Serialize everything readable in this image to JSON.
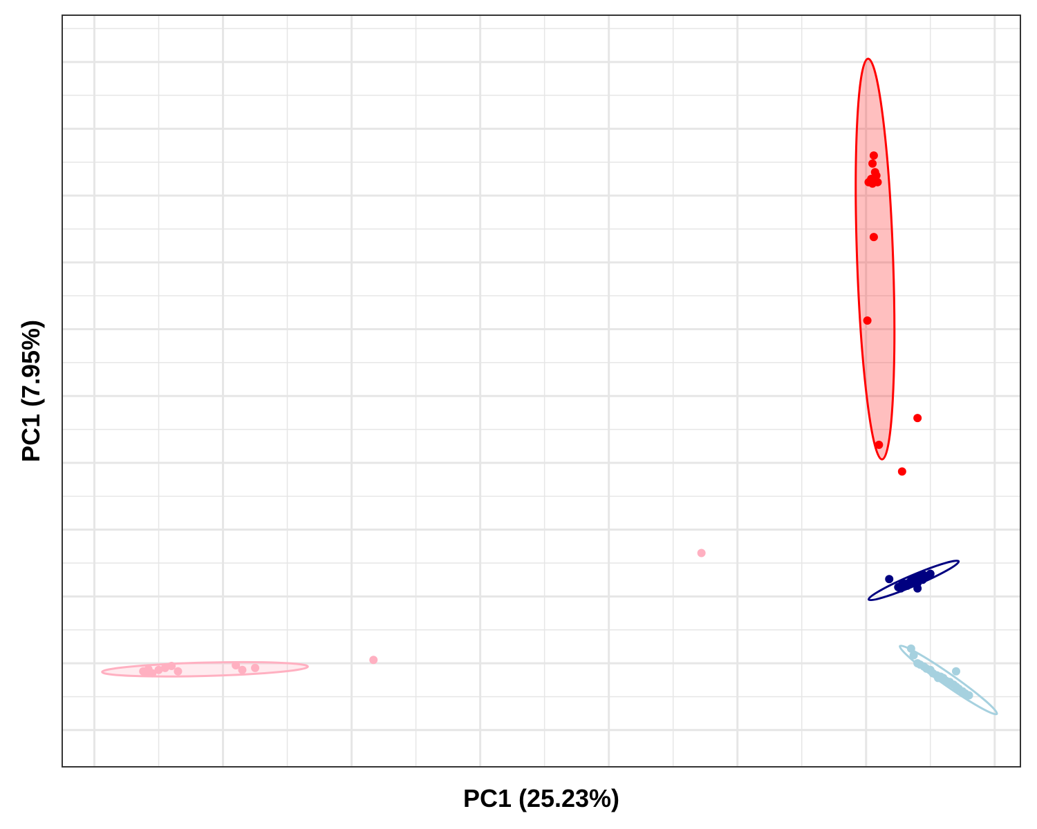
{
  "chart_data": {
    "type": "scatter",
    "title": "",
    "xlabel": "PC1 (25.23%)",
    "ylabel": "PC1 (7.95%)",
    "tick_labels_shown": false,
    "xlim": [
      -0.25,
      7.2
    ],
    "ylim": [
      -0.55,
      10.7
    ],
    "grid": true,
    "legend": "none",
    "series": [
      {
        "color": "#ff0000",
        "fill": "#ff0000",
        "points": [
          [
            6.06,
            8.6
          ],
          [
            6.05,
            8.48
          ],
          [
            6.08,
            8.3
          ],
          [
            6.02,
            8.2
          ],
          [
            6.05,
            8.18
          ],
          [
            6.09,
            8.2
          ],
          [
            6.07,
            8.35
          ],
          [
            6.04,
            8.25
          ],
          [
            6.06,
            7.38
          ],
          [
            6.01,
            6.13
          ],
          [
            6.4,
            4.67
          ],
          [
            6.1,
            4.27
          ],
          [
            6.28,
            3.87
          ]
        ],
        "ellipse": {
          "cx": 6.07,
          "cy": 7.05,
          "rx": 0.14,
          "ry": 3.0,
          "angle_deg": -2
        }
      },
      {
        "color": "#000080",
        "points": [
          [
            6.18,
            2.26
          ],
          [
            6.25,
            2.14
          ],
          [
            6.3,
            2.19
          ],
          [
            6.35,
            2.24
          ],
          [
            6.4,
            2.28
          ],
          [
            6.45,
            2.32
          ],
          [
            6.5,
            2.34
          ],
          [
            6.27,
            2.12
          ],
          [
            6.33,
            2.2
          ],
          [
            6.38,
            2.26
          ],
          [
            6.42,
            2.3
          ],
          [
            6.47,
            2.3
          ],
          [
            6.32,
            2.16
          ],
          [
            6.36,
            2.22
          ],
          [
            6.4,
            2.2
          ],
          [
            6.44,
            2.25
          ],
          [
            6.28,
            2.18
          ],
          [
            6.4,
            2.12
          ]
        ],
        "ellipse": {
          "cx": 6.37,
          "cy": 2.24,
          "rx": 0.38,
          "ry": 0.08,
          "angle_deg": -23
        }
      },
      {
        "color": "#a6d1df",
        "points": [
          [
            6.35,
            1.22
          ],
          [
            6.37,
            1.12
          ],
          [
            6.4,
            1.0
          ],
          [
            6.45,
            0.95
          ],
          [
            6.5,
            0.9
          ],
          [
            6.55,
            0.82
          ],
          [
            6.6,
            0.78
          ],
          [
            6.65,
            0.72
          ],
          [
            6.7,
            0.65
          ],
          [
            6.75,
            0.58
          ],
          [
            6.8,
            0.52
          ],
          [
            6.64,
            0.7
          ],
          [
            6.52,
            0.85
          ],
          [
            6.58,
            0.8
          ],
          [
            6.72,
            0.62
          ],
          [
            6.47,
            0.92
          ],
          [
            6.62,
            0.74
          ],
          [
            6.68,
            0.68
          ],
          [
            6.77,
            0.55
          ],
          [
            6.56,
            0.78
          ],
          [
            6.7,
            0.88
          ],
          [
            6.42,
            0.98
          ]
        ],
        "ellipse": {
          "cx": 6.64,
          "cy": 0.75,
          "rx": 0.46,
          "ry": 0.09,
          "angle_deg": 35
        }
      },
      {
        "color": "#ffb0c1",
        "fill": "#ffb0c1",
        "points": [
          [
            0.38,
            0.88
          ],
          [
            0.42,
            0.91
          ],
          [
            0.45,
            0.85
          ],
          [
            0.5,
            0.9
          ],
          [
            0.55,
            0.93
          ],
          [
            0.65,
            0.88
          ],
          [
            0.6,
            0.96
          ],
          [
            1.1,
            0.97
          ],
          [
            1.15,
            0.9
          ],
          [
            1.25,
            0.93
          ],
          [
            0.4,
            0.86
          ],
          [
            2.17,
            1.05
          ],
          [
            4.72,
            2.65
          ]
        ],
        "ellipse": {
          "cx": 0.86,
          "cy": 0.91,
          "rx": 0.8,
          "ry": 0.1,
          "angle_deg": -1.5
        }
      }
    ]
  }
}
